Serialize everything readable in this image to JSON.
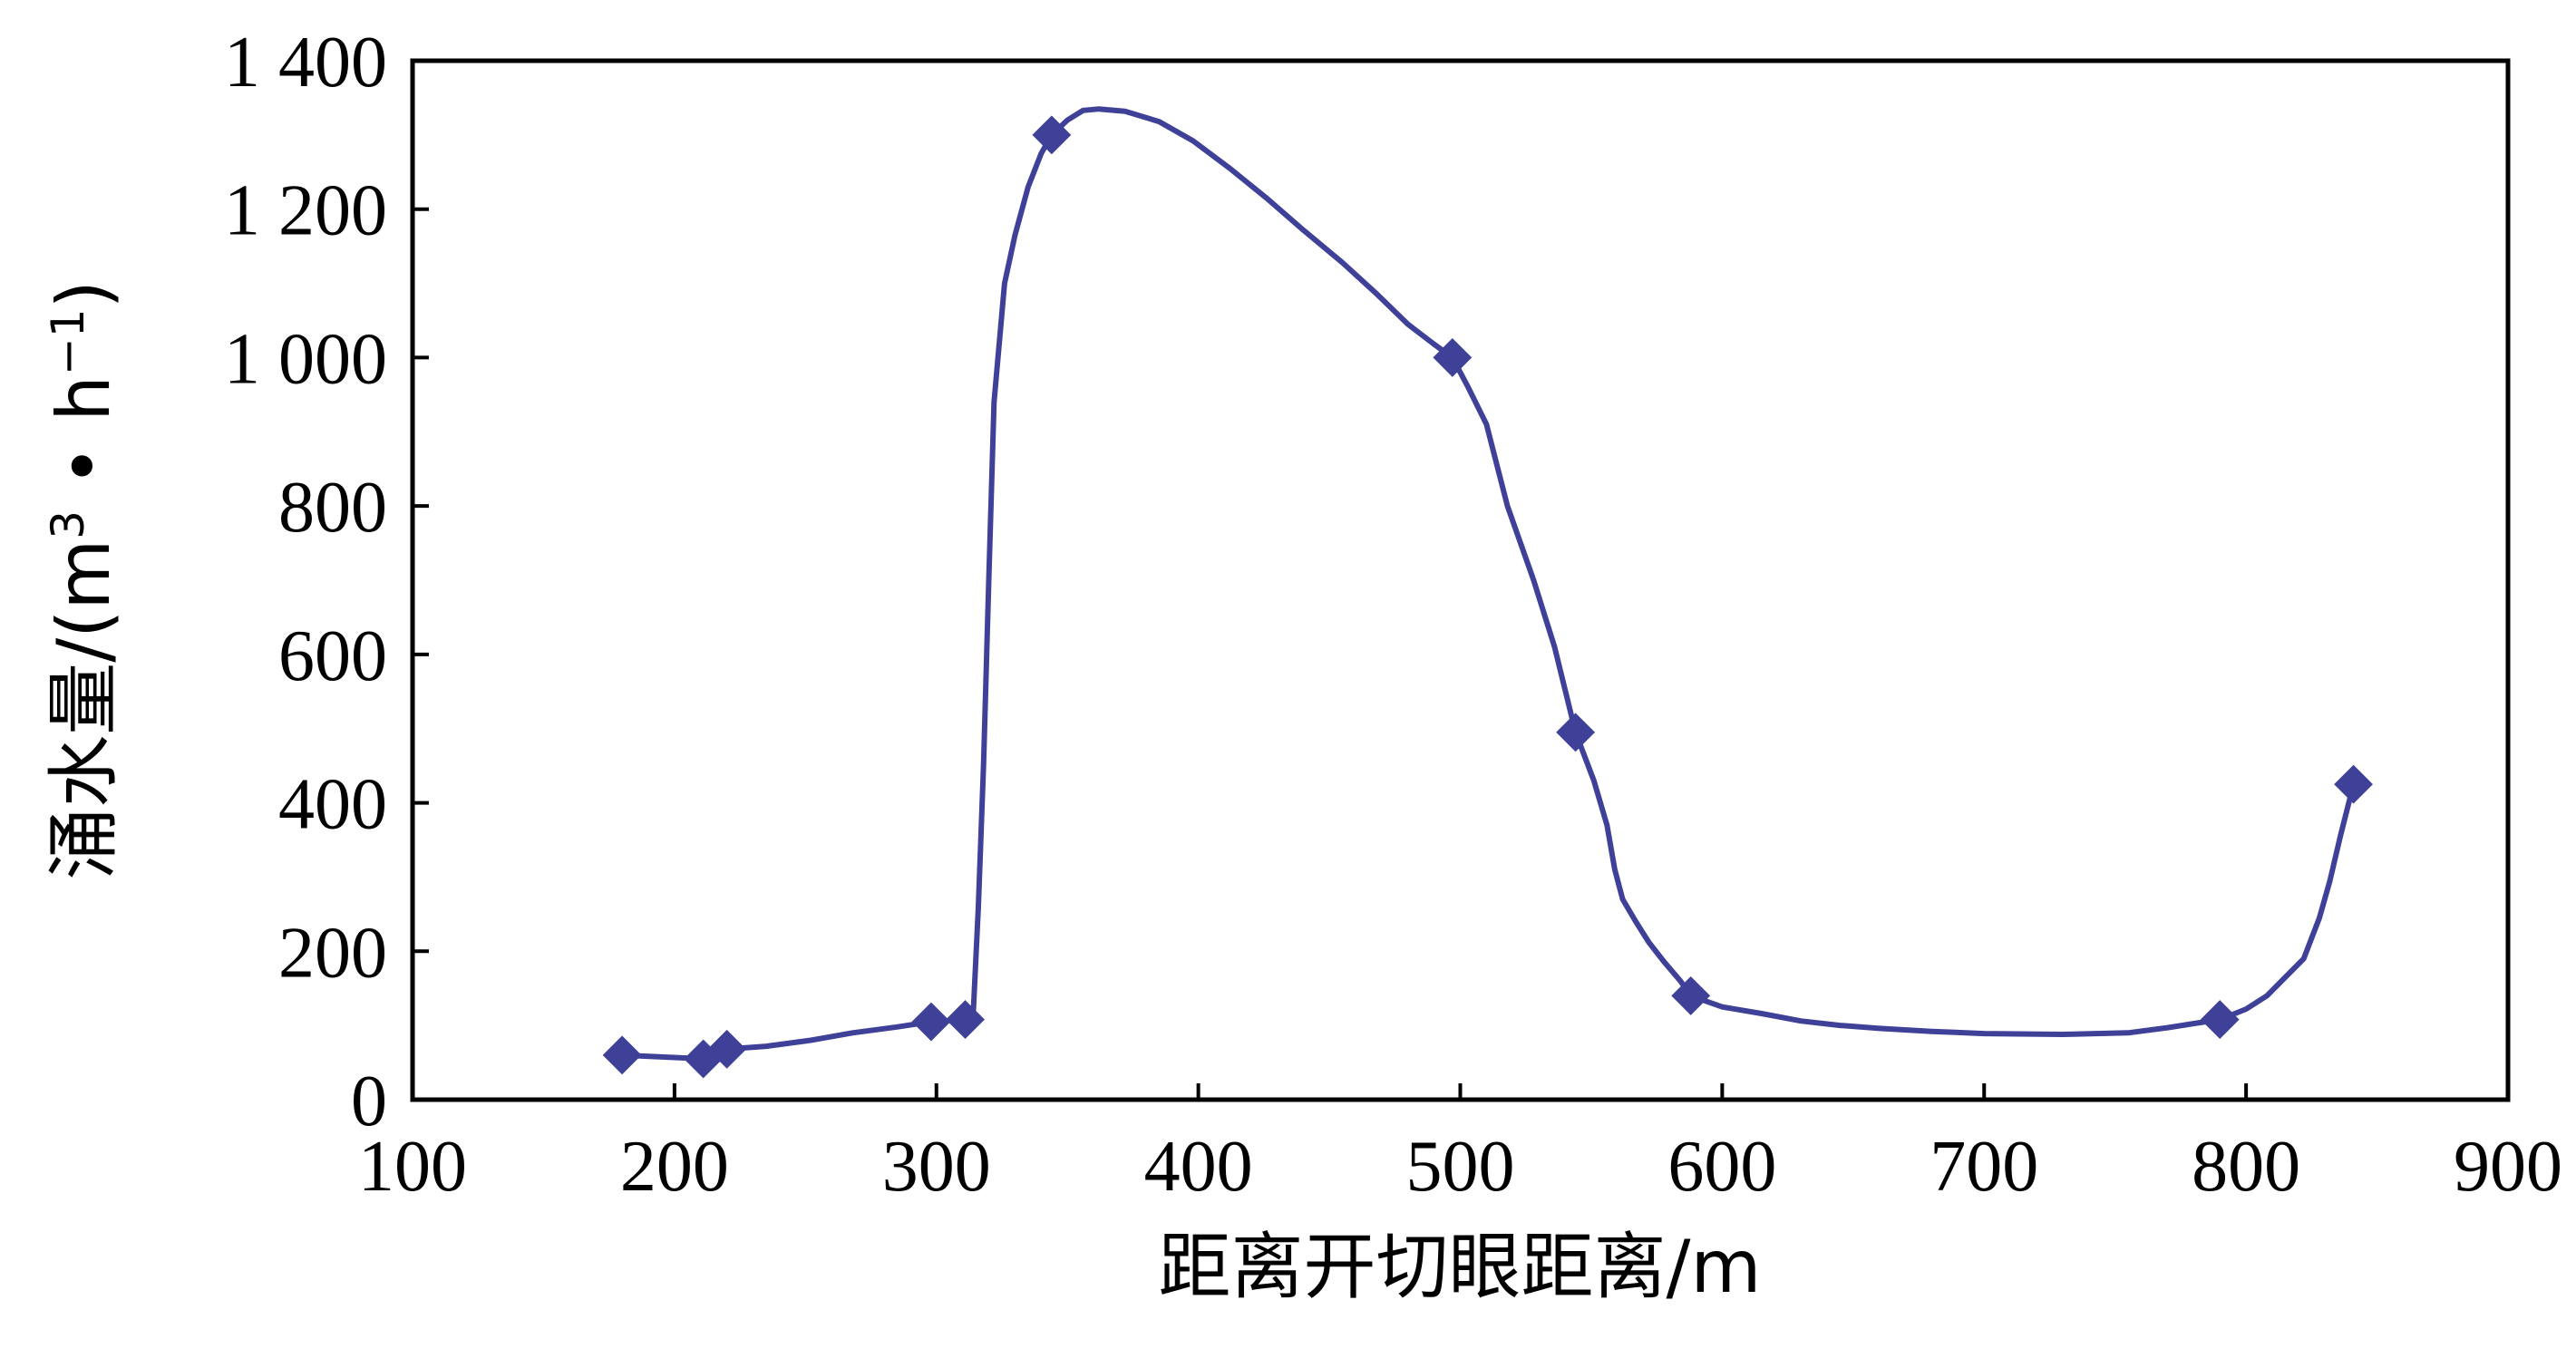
{
  "chart_data": {
    "type": "line",
    "title": "",
    "xlabel": "距离开切眼距离/m",
    "ylabel_main": "涌水量/(m",
    "ylabel_sup1": "3",
    "ylabel_mid": " • h",
    "ylabel_sup2": "−1",
    "ylabel_end": ")",
    "xlim": [
      100,
      900
    ],
    "ylim": [
      0,
      1400
    ],
    "x_ticks": [
      100,
      200,
      300,
      400,
      500,
      600,
      700,
      800,
      900
    ],
    "x_tick_labels": [
      "100",
      "200",
      "300",
      "400",
      "500",
      "600",
      "700",
      "800",
      "900"
    ],
    "y_ticks": [
      0,
      200,
      400,
      600,
      800,
      1000,
      1200,
      1400
    ],
    "y_tick_labels": [
      "0",
      "200",
      "400",
      "600",
      "800",
      "1 000",
      "1 200",
      "1 400"
    ],
    "line_color": "#3F4199",
    "marker": "diamond",
    "grid": false,
    "markers": [
      {
        "x": 180,
        "y": 60
      },
      {
        "x": 211,
        "y": 55
      },
      {
        "x": 220,
        "y": 68
      },
      {
        "x": 298,
        "y": 105
      },
      {
        "x": 311,
        "y": 108
      },
      {
        "x": 344,
        "y": 1300
      },
      {
        "x": 497,
        "y": 1000
      },
      {
        "x": 544,
        "y": 495
      },
      {
        "x": 588,
        "y": 140
      },
      {
        "x": 790,
        "y": 108
      },
      {
        "x": 841,
        "y": 425
      }
    ],
    "curve": [
      [
        180,
        60
      ],
      [
        211,
        55
      ],
      [
        220,
        68
      ],
      [
        235,
        72
      ],
      [
        252,
        80
      ],
      [
        268,
        90
      ],
      [
        285,
        98
      ],
      [
        298,
        105
      ],
      [
        311,
        108
      ],
      [
        314,
        112
      ],
      [
        316,
        260
      ],
      [
        318,
        450
      ],
      [
        320,
        700
      ],
      [
        322,
        940
      ],
      [
        326,
        1100
      ],
      [
        330,
        1165
      ],
      [
        335,
        1230
      ],
      [
        340,
        1275
      ],
      [
        344,
        1300
      ],
      [
        350,
        1320
      ],
      [
        356,
        1333
      ],
      [
        362,
        1335
      ],
      [
        372,
        1332
      ],
      [
        385,
        1318
      ],
      [
        398,
        1292
      ],
      [
        412,
        1255
      ],
      [
        426,
        1215
      ],
      [
        440,
        1172
      ],
      [
        455,
        1128
      ],
      [
        468,
        1086
      ],
      [
        480,
        1045
      ],
      [
        490,
        1018
      ],
      [
        497,
        1000
      ],
      [
        503,
        960
      ],
      [
        510,
        910
      ],
      [
        518,
        800
      ],
      [
        528,
        700
      ],
      [
        536,
        610
      ],
      [
        544,
        495
      ],
      [
        551,
        430
      ],
      [
        556,
        370
      ],
      [
        559,
        310
      ],
      [
        562,
        270
      ],
      [
        567,
        240
      ],
      [
        572,
        212
      ],
      [
        578,
        185
      ],
      [
        584,
        160
      ],
      [
        588,
        140
      ],
      [
        600,
        125
      ],
      [
        615,
        116
      ],
      [
        630,
        106
      ],
      [
        645,
        100
      ],
      [
        660,
        96
      ],
      [
        680,
        92
      ],
      [
        700,
        89
      ],
      [
        730,
        88
      ],
      [
        755,
        90
      ],
      [
        770,
        97
      ],
      [
        790,
        108
      ],
      [
        800,
        122
      ],
      [
        808,
        140
      ],
      [
        815,
        165
      ],
      [
        822,
        190
      ],
      [
        828,
        245
      ],
      [
        832,
        295
      ],
      [
        836,
        355
      ],
      [
        841,
        425
      ]
    ]
  }
}
